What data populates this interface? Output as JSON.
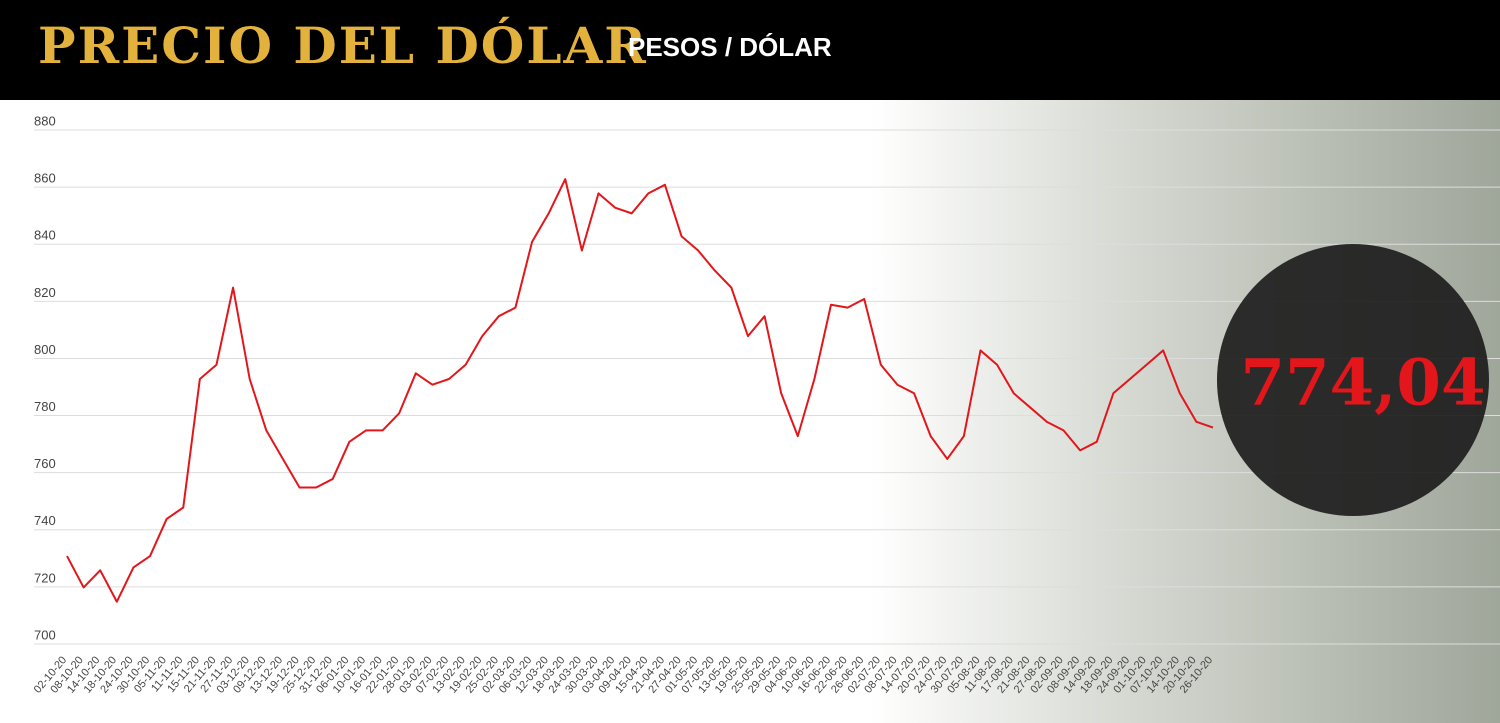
{
  "chart_data": {
    "type": "line",
    "title": "PRECIO DEL DÓLAR",
    "subtitle": "PESOS / DÓLAR",
    "annotation": "774,04",
    "categories": [
      "02-10-20",
      "08-10-20",
      "14-10-20",
      "18-10-20",
      "24-10-20",
      "30-10-20",
      "05-11-20",
      "11-11-20",
      "15-11-20",
      "21-11-20",
      "27-11-20",
      "03-12-20",
      "09-12-20",
      "13-12-20",
      "19-12-20",
      "25-12-20",
      "31-12-20",
      "06-01-20",
      "10-01-20",
      "16-01-20",
      "22-01-20",
      "28-01-20",
      "03-02-20",
      "07-02-20",
      "13-02-20",
      "19-02-20",
      "25-02-20",
      "02-03-20",
      "06-03-20",
      "12-03-20",
      "18-03-20",
      "24-03-20",
      "30-03-20",
      "03-04-20",
      "09-04-20",
      "15-04-20",
      "21-04-20",
      "27-04-20",
      "01-05-20",
      "07-05-20",
      "13-05-20",
      "19-05-20",
      "25-05-20",
      "29-05-20",
      "04-06-20",
      "10-06-20",
      "16-06-20",
      "22-06-20",
      "26-06-20",
      "02-07-20",
      "08-07-20",
      "14-07-20",
      "20-07-20",
      "24-07-20",
      "30-07-20",
      "05-08-20",
      "11-08-20",
      "17-08-20",
      "21-08-20",
      "27-08-20",
      "02-09-20",
      "08-09-20",
      "14-09-20",
      "18-09-20",
      "24-09-20",
      "01-10-20",
      "07-10-20",
      "14-10-20",
      "20-10-20",
      "26-10-20"
    ],
    "values": [
      728,
      717,
      723,
      712,
      724,
      728,
      741,
      745,
      790,
      795,
      822,
      790,
      772,
      762,
      752,
      752,
      755,
      768,
      772,
      772,
      778,
      792,
      788,
      790,
      795,
      805,
      812,
      815,
      838,
      848,
      860,
      835,
      855,
      850,
      848,
      855,
      858,
      840,
      835,
      828,
      822,
      805,
      812,
      785,
      770,
      790,
      816,
      815,
      818,
      795,
      788,
      785,
      770,
      762,
      770,
      800,
      795,
      785,
      780,
      775,
      772,
      765,
      768,
      785,
      790,
      795,
      800,
      785,
      775,
      773
    ],
    "color": "#e3161b",
    "ylim": [
      700,
      880
    ],
    "yticks": [
      700,
      720,
      740,
      760,
      780,
      800,
      820,
      840,
      860,
      880
    ],
    "grid": true
  }
}
